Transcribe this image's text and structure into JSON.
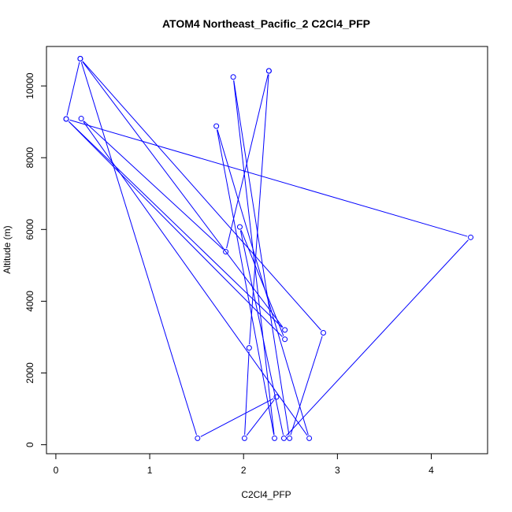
{
  "chart_data": {
    "type": "line",
    "title": "ATOM4 Northeast_Pacific_2 C2Cl4_PFP",
    "xlabel": "C2Cl4_PFP",
    "ylabel": "Altitude (m)",
    "xlim": [
      -0.1,
      4.6
    ],
    "ylim": [
      -250,
      11100
    ],
    "x_ticks": [
      "0",
      "1",
      "2",
      "3",
      "4"
    ],
    "y_ticks": [
      "0",
      "2000",
      "4000",
      "6000",
      "8000",
      "10000"
    ],
    "x_tick_values": [
      0,
      1,
      2,
      3,
      4
    ],
    "y_tick_values": [
      0,
      2000,
      4000,
      6000,
      8000,
      10000
    ],
    "grid": false,
    "marker": "open-circle",
    "series_color": "#0000ff",
    "series": [
      {
        "points": [
          {
            "x": 2.27,
            "y": 10420
          },
          {
            "x": 1.81,
            "y": 5380
          },
          {
            "x": 0.27,
            "y": 9090
          },
          {
            "x": 2.7,
            "y": 180
          },
          {
            "x": 1.71,
            "y": 8880
          },
          {
            "x": 2.33,
            "y": 180
          },
          {
            "x": 1.89,
            "y": 10250
          },
          {
            "x": 2.49,
            "y": 180
          },
          {
            "x": 2.85,
            "y": 3120
          },
          {
            "x": 0.26,
            "y": 10760
          },
          {
            "x": 2.44,
            "y": 3200
          },
          {
            "x": 0.11,
            "y": 9080
          },
          {
            "x": 2.44,
            "y": 2940
          },
          {
            "x": 1.96,
            "y": 6070
          },
          {
            "x": 2.43,
            "y": 180
          },
          {
            "x": 4.42,
            "y": 5780
          },
          {
            "x": 0.11,
            "y": 9080
          },
          {
            "x": 0.26,
            "y": 10760
          },
          {
            "x": 1.51,
            "y": 180
          },
          {
            "x": 2.35,
            "y": 1330
          },
          {
            "x": 2.01,
            "y": 180
          },
          {
            "x": 2.06,
            "y": 2700
          },
          {
            "x": 2.27,
            "y": 10420
          }
        ]
      }
    ]
  }
}
